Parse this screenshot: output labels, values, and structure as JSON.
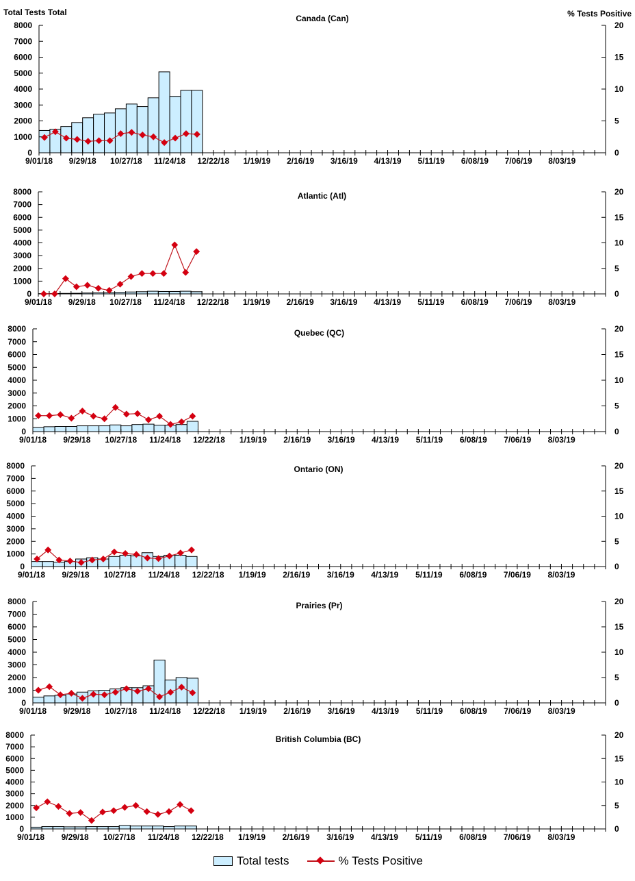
{
  "chart_data": {
    "type": "bar+line",
    "left_axis_label": "Total Tests Total",
    "right_axis_label": "% Tests Positive",
    "ylim_left": [
      0,
      8000
    ],
    "yticks_left": [
      0,
      1000,
      2000,
      3000,
      4000,
      5000,
      6000,
      7000,
      8000
    ],
    "ylim_right": [
      0,
      20
    ],
    "yticks_right": [
      0,
      5,
      10,
      15,
      20
    ],
    "x_tick_labels": [
      "9/01/18",
      "9/29/18",
      "10/27/18",
      "11/24/18",
      "12/22/18",
      "1/19/19",
      "2/16/19",
      "3/16/19",
      "4/13/19",
      "5/11/19",
      "6/08/19",
      "7/06/19",
      "8/03/19"
    ],
    "weeks": 52,
    "colors": {
      "bar": "#cceeff",
      "line": "#c0141c",
      "marker": "#d40010"
    },
    "legend": [
      "Total tests",
      "% Tests Positive"
    ],
    "panels": [
      {
        "title": "Canada (Can)",
        "total_tests": [
          1400,
          1480,
          1650,
          1900,
          2200,
          2420,
          2500,
          2760,
          3060,
          2900,
          3450,
          5080,
          3540,
          3920,
          3920
        ],
        "pct_positive": [
          2.4,
          3.3,
          2.3,
          2.1,
          1.8,
          1.9,
          1.9,
          3.0,
          3.2,
          2.8,
          2.5,
          1.6,
          2.3,
          3.0,
          2.9
        ]
      },
      {
        "title": "Atlantic (Atl)",
        "total_tests": [
          20,
          30,
          40,
          50,
          70,
          80,
          90,
          130,
          150,
          170,
          210,
          190,
          190,
          210,
          170
        ],
        "pct_positive": [
          0,
          0,
          3.0,
          1.4,
          1.7,
          1.1,
          0.7,
          1.9,
          3.4,
          4.0,
          4.0,
          4.0,
          9.6,
          4.2,
          8.3
        ]
      },
      {
        "title": "Quebec (QC)",
        "total_tests": [
          320,
          380,
          400,
          400,
          450,
          450,
          450,
          520,
          450,
          550,
          580,
          500,
          500,
          550,
          800
        ],
        "pct_positive": [
          3.1,
          3.1,
          3.3,
          2.6,
          4.0,
          3.0,
          2.5,
          4.7,
          3.4,
          3.5,
          2.3,
          3.0,
          1.4,
          1.9,
          3.0
        ]
      },
      {
        "title": "Ontario (ON)",
        "total_tests": [
          400,
          400,
          350,
          400,
          600,
          700,
          600,
          800,
          900,
          850,
          1100,
          800,
          900,
          900,
          800
        ],
        "pct_positive": [
          1.5,
          3.3,
          1.3,
          1.1,
          0.8,
          1.3,
          1.5,
          2.9,
          2.6,
          2.4,
          1.7,
          1.6,
          2.1,
          2.7,
          3.3
        ]
      },
      {
        "title": "Prairies (Pr)",
        "total_tests": [
          450,
          550,
          600,
          700,
          850,
          950,
          1000,
          1100,
          1200,
          1200,
          1350,
          3380,
          1800,
          2000,
          1950
        ],
        "pct_positive": [
          2.5,
          3.2,
          1.6,
          1.9,
          0.9,
          1.7,
          1.6,
          2.1,
          2.8,
          2.3,
          2.8,
          1.2,
          2.1,
          3.1,
          2.0
        ]
      },
      {
        "title": "British Columbia (BC)",
        "total_tests": [
          150,
          200,
          200,
          180,
          180,
          200,
          200,
          200,
          300,
          250,
          250,
          250,
          200,
          250,
          250
        ],
        "pct_positive": [
          4.5,
          5.8,
          4.8,
          3.3,
          3.5,
          1.8,
          3.6,
          3.9,
          4.6,
          5.0,
          3.7,
          3.1,
          3.7,
          5.2,
          3.9
        ]
      }
    ]
  }
}
